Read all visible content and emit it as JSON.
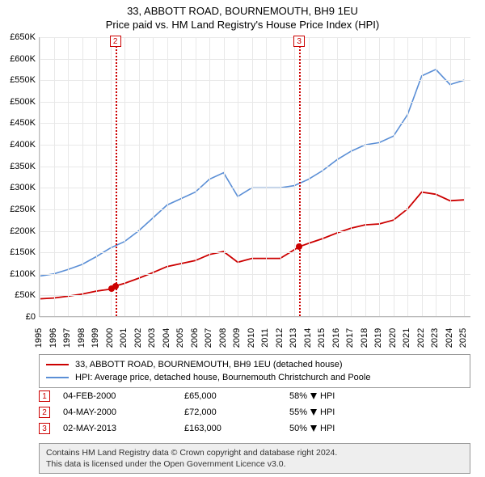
{
  "title": "33, ABBOTT ROAD, BOURNEMOUTH, BH9 1EU",
  "subtitle": "Price paid vs. HM Land Registry's House Price Index (HPI)",
  "chart": {
    "type": "line",
    "background_color": "#ffffff",
    "grid_color": "#e8e8e8",
    "axis_color": "#bbbbbb",
    "xlim": [
      1995,
      2025.5
    ],
    "ylim": [
      0,
      650
    ],
    "ytick_step": 50,
    "yticks": [
      0,
      50,
      100,
      150,
      200,
      250,
      300,
      350,
      400,
      450,
      500,
      550,
      600,
      650
    ],
    "ytick_labels": [
      "£0",
      "£50K",
      "£100K",
      "£150K",
      "£200K",
      "£250K",
      "£300K",
      "£350K",
      "£400K",
      "£450K",
      "£500K",
      "£550K",
      "£600K",
      "£650K"
    ],
    "xticks": [
      1995,
      1996,
      1997,
      1998,
      1999,
      2000,
      2001,
      2002,
      2003,
      2004,
      2005,
      2006,
      2007,
      2008,
      2009,
      2010,
      2011,
      2012,
      2013,
      2014,
      2015,
      2016,
      2017,
      2018,
      2019,
      2020,
      2021,
      2022,
      2023,
      2024,
      2025
    ],
    "label_fontsize": 11,
    "title_fontsize": 13,
    "series": [
      {
        "name": "hpi",
        "label": "HPI: Average price, detached house, Bournemouth Christchurch and Poole",
        "color": "#5b8fd6",
        "line_width": 1.6,
        "x": [
          1995,
          1996,
          1997,
          1998,
          1999,
          2000,
          2001,
          2002,
          2003,
          2004,
          2005,
          2006,
          2007,
          2008,
          2009,
          2010,
          2011,
          2012,
          2013,
          2014,
          2015,
          2016,
          2017,
          2018,
          2019,
          2020,
          2021,
          2022,
          2023,
          2024,
          2025
        ],
        "y": [
          95,
          100,
          110,
          122,
          140,
          160,
          175,
          200,
          230,
          260,
          275,
          290,
          320,
          335,
          280,
          300,
          300,
          300,
          305,
          320,
          340,
          365,
          385,
          400,
          405,
          420,
          470,
          560,
          575,
          540,
          550
        ]
      },
      {
        "name": "price_paid",
        "label": "33, ABBOTT ROAD, BOURNEMOUTH, BH9 1EU (detached house)",
        "color": "#cc0000",
        "line_width": 1.8,
        "x": [
          1995,
          1996,
          1997,
          1998,
          1999,
          2000.1,
          2000.35,
          2001,
          2002,
          2003,
          2004,
          2005,
          2006,
          2007,
          2008,
          2009,
          2010,
          2011,
          2012,
          2013.34,
          2014,
          2015,
          2016,
          2017,
          2018,
          2019,
          2020,
          2021,
          2022,
          2023,
          2024,
          2025
        ],
        "y": [
          42,
          44,
          48,
          53,
          60,
          65,
          72,
          78,
          90,
          103,
          117,
          124,
          131,
          145,
          152,
          127,
          136,
          136,
          136,
          163,
          171,
          182,
          195,
          206,
          214,
          216,
          225,
          251,
          290,
          285,
          270,
          272
        ]
      }
    ],
    "sale_markers": [
      {
        "x": 2000.1,
        "y": 65
      },
      {
        "x": 2000.35,
        "y": 72
      },
      {
        "x": 2013.34,
        "y": 163
      }
    ],
    "event_lines": [
      {
        "n": "2",
        "x": 2000.35
      },
      {
        "n": "3",
        "x": 2013.34
      }
    ]
  },
  "legend": {
    "items": [
      {
        "color": "#cc0000",
        "label_ref": "chart.series.1.label"
      },
      {
        "color": "#5b8fd6",
        "label_ref": "chart.series.0.label"
      }
    ]
  },
  "sales": [
    {
      "n": "1",
      "date": "04-FEB-2000",
      "price": "£65,000",
      "diff_pct": "58%",
      "diff_dir": "down",
      "diff_vs": "HPI"
    },
    {
      "n": "2",
      "date": "04-MAY-2000",
      "price": "£72,000",
      "diff_pct": "55%",
      "diff_dir": "down",
      "diff_vs": "HPI"
    },
    {
      "n": "3",
      "date": "02-MAY-2013",
      "price": "£163,000",
      "diff_pct": "50%",
      "diff_dir": "down",
      "diff_vs": "HPI"
    }
  ],
  "footer_line1": "Contains HM Land Registry data © Crown copyright and database right 2024.",
  "footer_line2": "This data is licensed under the Open Government Licence v3.0."
}
